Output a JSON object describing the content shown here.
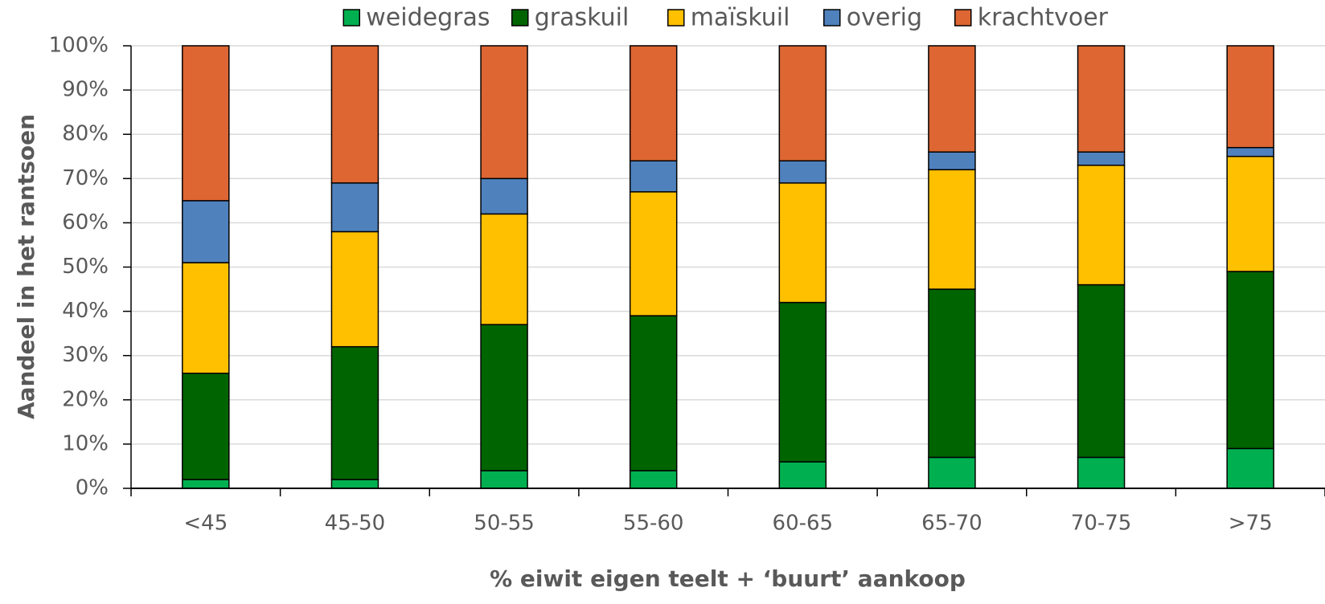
{
  "chart_data": {
    "type": "stacked_bar",
    "x_label": "% eiwit eigen teelt + ‘buurt’ aankoop",
    "y_label": "Aandeel in het rantsoen",
    "categories": [
      "<45",
      "45-50",
      "50-55",
      "55-60",
      "60-65",
      "65-70",
      "70-75",
      ">75"
    ],
    "series": [
      {
        "name": "weidegras",
        "color": "#00b050",
        "values": [
          2,
          2,
          4,
          4,
          6,
          7,
          7,
          9
        ]
      },
      {
        "name": "graskuil",
        "color": "#006400",
        "values": [
          24,
          30,
          33,
          35,
          36,
          38,
          39,
          40
        ]
      },
      {
        "name": "maïskuil",
        "color": "#ffc000",
        "values": [
          25,
          26,
          25,
          28,
          27,
          27,
          27,
          26
        ]
      },
      {
        "name": "overig",
        "color": "#4f81bd",
        "values": [
          14,
          11,
          8,
          7,
          5,
          4,
          3,
          2
        ]
      },
      {
        "name": "krachtvoer",
        "color": "#dd6633",
        "values": [
          35,
          31,
          30,
          26,
          26,
          24,
          24,
          23
        ]
      }
    ],
    "ylim": [
      0,
      100
    ],
    "yticks": [
      {
        "value": 0,
        "label": "0%"
      },
      {
        "value": 10,
        "label": "10%"
      },
      {
        "value": 20,
        "label": "20%"
      },
      {
        "value": 30,
        "label": "30%"
      },
      {
        "value": 40,
        "label": "40%"
      },
      {
        "value": 50,
        "label": "50%"
      },
      {
        "value": 60,
        "label": "60%"
      },
      {
        "value": 70,
        "label": "70%"
      },
      {
        "value": 80,
        "label": "80%"
      },
      {
        "value": 90,
        "label": "90%"
      },
      {
        "value": 100,
        "label": "100%"
      }
    ],
    "grid": true,
    "legend": "top"
  }
}
